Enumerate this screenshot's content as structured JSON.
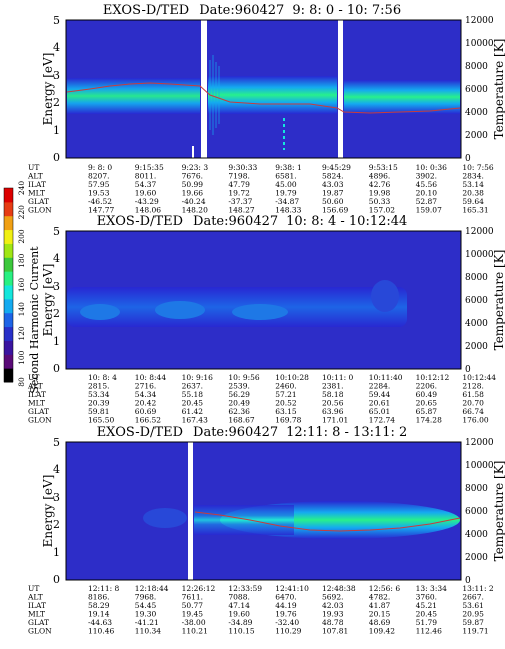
{
  "chart_data": [
    {
      "type": "heatmap",
      "title_prefix": "EXOS-D/TED",
      "date_label": "Date:960427",
      "time_range": "9: 8: 0 - 10: 7:56",
      "ylabel_left": "Energy [eV]",
      "ylabel_right": "Temperature [K]",
      "ylim": [
        0,
        5
      ],
      "yticks": [
        "0",
        "1",
        "2",
        "3",
        "4",
        "5"
      ],
      "ylim_right": [
        0,
        12000
      ],
      "yticks_right": [
        "0",
        "2000",
        "4000",
        "6000",
        "8000",
        "10000",
        "12000"
      ],
      "row_labels": [
        "UT",
        "ALT",
        "ILAT",
        "MLT",
        "GLAT",
        "GLON"
      ],
      "columns": [
        [
          "9: 8: 0",
          "8207.",
          "57.95",
          "19.53",
          "-46.52",
          "147.77"
        ],
        [
          "9:15:35",
          "8011.",
          "54.37",
          "19.60",
          "-43.29",
          "148.06"
        ],
        [
          "9:23: 3",
          "7676.",
          "50.99",
          "19.66",
          "-40.24",
          "148.20"
        ],
        [
          "9:30:33",
          "7198.",
          "47.79",
          "19.72",
          "-37.37",
          "148.27"
        ],
        [
          "9:38: 1",
          "6581.",
          "45.00",
          "19.79",
          "-34.87",
          "148.33"
        ],
        [
          "9:45:29",
          "5824.",
          "43.03",
          "19.87",
          "50.60",
          "156.69"
        ],
        [
          "9:53:15",
          "4896.",
          "42.76",
          "19.98",
          "50.33",
          "157.02"
        ],
        [
          "10: 0:36",
          "3902.",
          "45.56",
          "20.10",
          "52.87",
          "159.07"
        ],
        [
          "10: 7:56",
          "2834.",
          "53.14",
          "20.38",
          "59.64",
          "165.31"
        ]
      ]
    },
    {
      "type": "heatmap",
      "title_prefix": "EXOS-D/TED",
      "date_label": "Date:960427",
      "time_range": "10: 8: 4 - 10:12:44",
      "ylabel_left": "Energy [eV]",
      "ylabel_right": "Temperature [K]",
      "ylim": [
        0,
        5
      ],
      "yticks": [
        "0",
        "1",
        "2",
        "3",
        "4",
        "5"
      ],
      "ylim_right": [
        0,
        12000
      ],
      "yticks_right": [
        "0",
        "2000",
        "4000",
        "6000",
        "8000",
        "10000",
        "12000"
      ],
      "row_labels": [
        "UT",
        "ALT",
        "ILAT",
        "MLT",
        "GLAT",
        "GLON"
      ],
      "columns": [
        [
          "10: 8: 4",
          "2815.",
          "53.34",
          "20.39",
          "59.81",
          "165.50"
        ],
        [
          "10: 8:44",
          "2716.",
          "54.34",
          "20.42",
          "60.69",
          "166.52"
        ],
        [
          "10: 9:16",
          "2637.",
          "55.18",
          "20.45",
          "61.42",
          "167.43"
        ],
        [
          "10: 9:56",
          "2539.",
          "56.29",
          "20.49",
          "62.36",
          "168.67"
        ],
        [
          "10:10:28",
          "2460.",
          "57.21",
          "20.52",
          "63.15",
          "169.78"
        ],
        [
          "10:11: 0",
          "2381.",
          "58.18",
          "20.56",
          "63.96",
          "171.01"
        ],
        [
          "10:11:40",
          "2284.",
          "59.44",
          "20.61",
          "65.01",
          "172.74"
        ],
        [
          "10:12:12",
          "2206.",
          "60.49",
          "20.65",
          "65.87",
          "174.28"
        ],
        [
          "10:12:44",
          "2128.",
          "61.58",
          "20.70",
          "66.74",
          "176.00"
        ]
      ]
    },
    {
      "type": "heatmap",
      "title_prefix": "EXOS-D/TED",
      "date_label": "Date:960427",
      "time_range": "12:11: 8 - 13:11: 2",
      "ylabel_left": "Energy [eV]",
      "ylabel_right": "Temperature [K]",
      "ylim": [
        0,
        5
      ],
      "yticks": [
        "0",
        "1",
        "2",
        "3",
        "4",
        "5"
      ],
      "ylim_right": [
        0,
        12000
      ],
      "yticks_right": [
        "0",
        "2000",
        "4000",
        "6000",
        "8000",
        "10000",
        "12000"
      ],
      "row_labels": [
        "UT",
        "ALT",
        "ILAT",
        "MLT",
        "GLAT",
        "GLON"
      ],
      "columns": [
        [
          "12:11: 8",
          "8186.",
          "58.29",
          "19.14",
          "-44.63",
          "110.46"
        ],
        [
          "12:18:44",
          "7968.",
          "54.45",
          "19.30",
          "-41.21",
          "110.34"
        ],
        [
          "12:26:12",
          "7611.",
          "50.77",
          "19.45",
          "-38.00",
          "110.21"
        ],
        [
          "12:33:59",
          "7088.",
          "47.14",
          "19.60",
          "-34.89",
          "110.15"
        ],
        [
          "12:41:10",
          "6470.",
          "44.19",
          "19.76",
          "-32.40",
          "110.29"
        ],
        [
          "12:48:38",
          "5692.",
          "42.03",
          "19.93",
          "48.78",
          "107.81"
        ],
        [
          "12:56: 6",
          "4782.",
          "41.87",
          "20.15",
          "48.69",
          "109.42"
        ],
        [
          "13: 3:34",
          "3760.",
          "45.21",
          "20.45",
          "51.79",
          "112.46"
        ],
        [
          "13:11: 2",
          "2667.",
          "53.61",
          "20.95",
          "59.87",
          "119.71"
        ]
      ]
    }
  ],
  "colorbar": {
    "label": "Second Harmonic Current",
    "ticks": [
      "80",
      "100",
      "120",
      "140",
      "160",
      "180",
      "200",
      "220",
      "240"
    ],
    "colors": [
      "#000000",
      "#5a0a78",
      "#3a14a0",
      "#2830c8",
      "#1e64e6",
      "#14aaf0",
      "#14e6dc",
      "#28f082",
      "#3cc83c",
      "#a0e614",
      "#f0f014",
      "#f0a014",
      "#e63c14",
      "#dc0000"
    ]
  }
}
